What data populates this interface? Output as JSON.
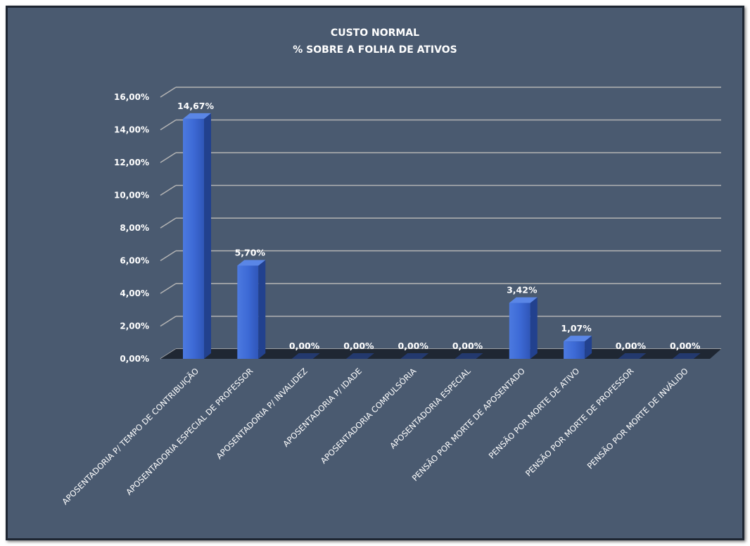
{
  "chart_data": {
    "type": "bar",
    "title": "CUSTO NORMAL",
    "subtitle": "% SOBRE A FOLHA DE ATIVOS",
    "xlabel": "",
    "ylabel": "",
    "categories": [
      "APOSENTADORIA P/ TEMPO DE CONTRIBUIÇÃO",
      "APOSENTADORIA ESPECIAL DE PROFESSOR",
      "APOSENTADORIA P/ INVALIDEZ",
      "APOSENTADORIA P/ IDADE",
      "APOSENTADORIA COMPULSÓRIA",
      "APOSENTADORIA ESPECIAL",
      "PENSÃO POR MORTE DE APOSENTADO",
      "PENSÃO POR MORTE DE ATIVO",
      "PENSÃO POR MORTE DE PROFESSOR",
      "PENSÃO POR MORTE DE INVÁLIDO"
    ],
    "values": [
      14.67,
      5.7,
      0.0,
      0.0,
      0.0,
      0.0,
      3.42,
      1.07,
      0.0,
      0.0
    ],
    "data_labels": [
      "14,67%",
      "5,70%",
      "0,00%",
      "0,00%",
      "0,00%",
      "0,00%",
      "3,42%",
      "1,07%",
      "0,00%",
      "0,00%"
    ],
    "ylim": [
      0,
      16
    ],
    "yticks": [
      0,
      2,
      4,
      6,
      8,
      10,
      12,
      14,
      16
    ],
    "ytick_labels": [
      "0,00%",
      "2,00%",
      "4,00%",
      "6,00%",
      "8,00%",
      "10,00%",
      "12,00%",
      "14,00%",
      "16,00%"
    ],
    "grid": true,
    "legend": "none",
    "colors": {
      "background": "#4a5a70",
      "bar": "#3a64c8",
      "gridline": "#b4b4b4",
      "text": "#ffffff"
    }
  }
}
